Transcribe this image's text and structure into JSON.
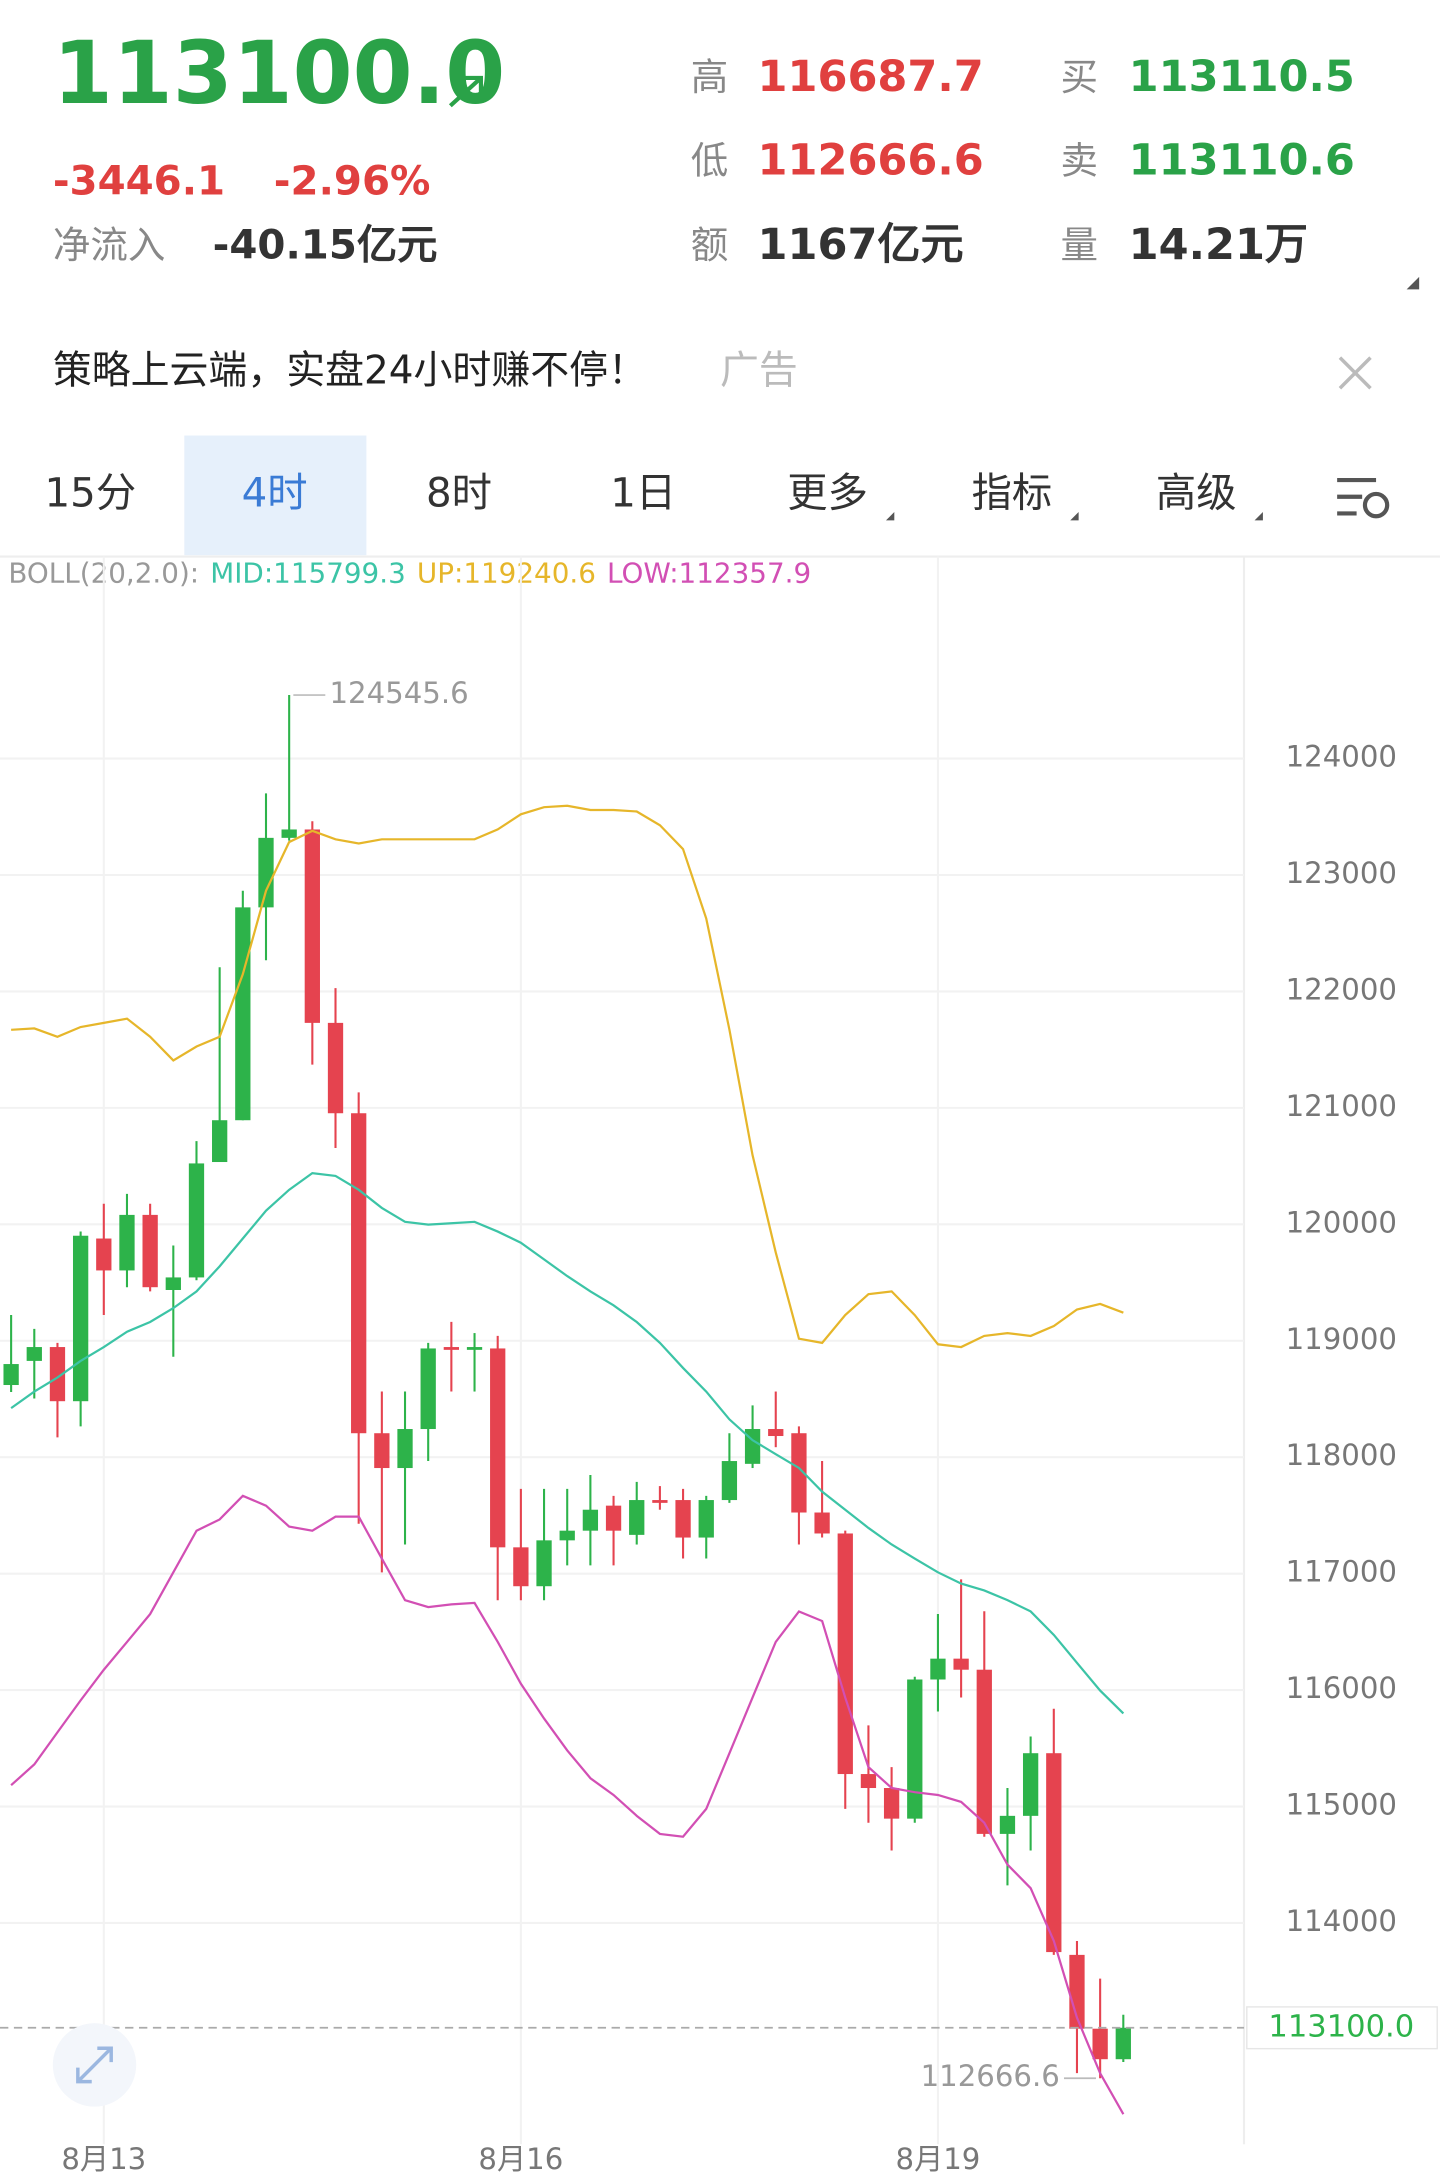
{
  "header": {
    "price": "113100.0",
    "change": "-3446.1",
    "change_pct": "-2.96%",
    "net_inflow_label": "净流入",
    "net_inflow": "-40.15亿元",
    "stats": [
      {
        "label": "高",
        "value": "116687.7",
        "color": "#e0403f"
      },
      {
        "label": "低",
        "value": "112666.6",
        "color": "#e0403f"
      },
      {
        "label": "额",
        "value": "1167亿元",
        "color": "#333333"
      },
      {
        "label": "买",
        "value": "113110.5",
        "color": "#2aa248"
      },
      {
        "label": "卖",
        "value": "113110.6",
        "color": "#2aa248"
      },
      {
        "label": "量",
        "value": "14.21万",
        "color": "#333333"
      }
    ]
  },
  "ad": {
    "text": "策略上云端，实盘24小时赚不停！",
    "tag": "广告"
  },
  "tabs": {
    "items": [
      "15分",
      "4时",
      "8时",
      "1日",
      "更多",
      "指标",
      "高级"
    ],
    "active": 1
  },
  "chart_data": {
    "type": "candlestick",
    "indicator": "BOLL(20,2.0):",
    "categories": [
      null,
      null,
      null,
      null,
      "8月13",
      null,
      null,
      null,
      null,
      null,
      null,
      null,
      null,
      null,
      null,
      null,
      null,
      null,
      null,
      null,
      null,
      null,
      "8月16",
      null,
      null,
      null,
      null,
      null,
      null,
      null,
      null,
      null,
      null,
      null,
      null,
      null,
      null,
      null,
      null,
      null,
      "8月19",
      null,
      null,
      null,
      null,
      null,
      null,
      null,
      null
    ],
    "open": [
      118620,
      118827,
      118946,
      118481,
      119878,
      119604,
      120081,
      119436,
      119544,
      120535,
      120894,
      122722,
      123319,
      123391,
      121730,
      120954,
      118206,
      117907,
      118242,
      118946,
      118922,
      118934,
      117226,
      116892,
      117286,
      117369,
      117584,
      117333,
      117632,
      117632,
      117310,
      117632,
      117943,
      118242,
      118206,
      117525,
      117345,
      115279,
      115159,
      114896,
      116091,
      116270,
      116175,
      114765,
      114920,
      115458,
      113726,
      113092,
      112830
    ],
    "high": [
      119221,
      119102,
      118982,
      119938,
      120177,
      120261,
      120177,
      119818,
      120715,
      122208,
      122865,
      123701,
      124545.6,
      123462,
      122029,
      121133,
      118564,
      118564,
      118982,
      119162,
      119066,
      119042,
      117728,
      117728,
      117728,
      117847,
      117668,
      117788,
      117752,
      117728,
      117668,
      118206,
      118445,
      118564,
      118265,
      117967,
      117369,
      115697,
      115338,
      116115,
      116653,
      116951,
      116677,
      115159,
      115601,
      115840,
      113845,
      113522,
      113212
    ],
    "low": [
      118560,
      118504,
      118170,
      118265,
      119221,
      119460,
      119424,
      118863,
      119520,
      120535,
      120894,
      122268,
      123295,
      121372,
      120655,
      117429,
      117011,
      117250,
      117967,
      118564,
      118564,
      116772,
      116772,
      116772,
      117071,
      117071,
      117071,
      117250,
      117549,
      117130,
      117130,
      117608,
      117907,
      118086,
      117250,
      117310,
      114980,
      114861,
      114622,
      114861,
      115816,
      115936,
      114741,
      114323,
      114622,
      113726,
      112710,
      112666.6,
      112806
    ],
    "close": [
      118800,
      118946,
      118481,
      119902,
      119604,
      120081,
      119460,
      119544,
      120523,
      120894,
      122722,
      123319,
      123391,
      121730,
      120954,
      118206,
      117907,
      118242,
      118934,
      118922,
      118946,
      117226,
      116892,
      117286,
      117369,
      117549,
      117369,
      117632,
      117608,
      117310,
      117632,
      117967,
      118242,
      118182,
      117525,
      117345,
      115279,
      115159,
      114896,
      116091,
      116270,
      116175,
      114765,
      114920,
      115458,
      113750,
      113092,
      112830,
      113100
    ],
    "up_color": "#2db34a",
    "down_color": "#e5434f",
    "series": [
      {
        "name": "MID:115799.3",
        "color": "#3cc4a6",
        "values": [
          118421,
          118564,
          118684,
          118827,
          118946,
          119078,
          119161,
          119281,
          119424,
          119639,
          119878,
          120117,
          120296,
          120440,
          120416,
          120296,
          120141,
          120022,
          119998,
          120010,
          120022,
          119938,
          119842,
          119699,
          119556,
          119424,
          119305,
          119161,
          118982,
          118767,
          118564,
          118325,
          118146,
          118026,
          117907,
          117704,
          117549,
          117393,
          117250,
          117130,
          117011,
          116915,
          116856,
          116772,
          116676,
          116473,
          116234,
          115996,
          115799.3
        ]
      },
      {
        "name": "UP:119240.6",
        "color": "#e6b62a",
        "values": [
          121670,
          121682,
          121611,
          121694,
          121730,
          121766,
          121611,
          121408,
          121527,
          121611,
          122148,
          122865,
          123283,
          123379,
          123307,
          123271,
          123307,
          123307,
          123307,
          123307,
          123307,
          123391,
          123522,
          123582,
          123594,
          123558,
          123558,
          123546,
          123427,
          123223,
          122626,
          121670,
          120595,
          119759,
          119018,
          118982,
          119221,
          119400,
          119424,
          119221,
          118970,
          118946,
          119042,
          119066,
          119042,
          119126,
          119269,
          119317,
          119240.6
        ]
      },
      {
        "name": "LOW:112357.9",
        "color": "#d24fb4",
        "values": [
          115183,
          115362,
          115637,
          115912,
          116175,
          116414,
          116653,
          117011,
          117369,
          117465,
          117668,
          117584,
          117405,
          117369,
          117489,
          117489,
          117130,
          116772,
          116712,
          116736,
          116748,
          116414,
          116055,
          115757,
          115482,
          115243,
          115099,
          114920,
          114765,
          114741,
          114980,
          115458,
          115936,
          116414,
          116676,
          116593,
          115936,
          115338,
          115159,
          115123,
          115099,
          115040,
          114861,
          114502,
          114299,
          113845,
          113188,
          112710,
          112357.9
        ]
      }
    ],
    "ylim": [
      112100,
      125400
    ],
    "yticks": [
      114000,
      115000,
      116000,
      117000,
      118000,
      119000,
      120000,
      121000,
      122000,
      123000,
      124000
    ],
    "grid": true,
    "high_label": 124545.6,
    "low_label": 112666.6,
    "last_price": {
      "value": 113100,
      "label": "113100.0"
    }
  }
}
